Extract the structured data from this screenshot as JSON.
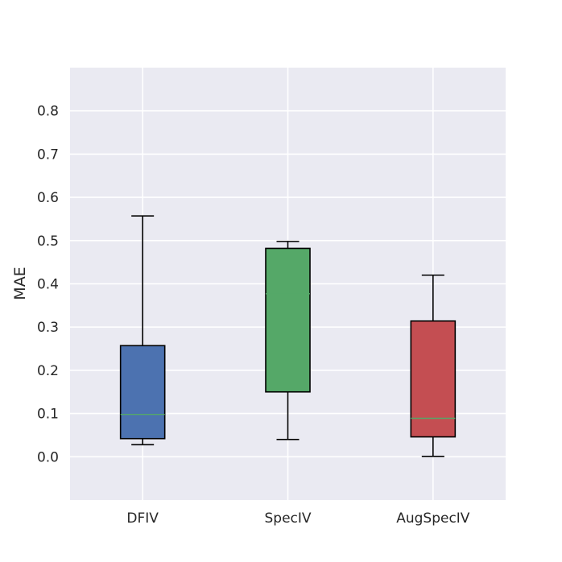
{
  "chart_data": {
    "type": "box",
    "title": "",
    "xlabel": "",
    "ylabel": "MAE",
    "ylim": [
      -0.1,
      0.9
    ],
    "yticks": [
      0.0,
      0.1,
      0.2,
      0.3,
      0.4,
      0.5,
      0.6,
      0.7,
      0.8
    ],
    "ytick_labels": [
      "0.0",
      "0.1",
      "0.2",
      "0.3",
      "0.4",
      "0.5",
      "0.6",
      "0.7",
      "0.8"
    ],
    "grid": true,
    "categories": [
      "DFIV",
      "SpecIV",
      "AugSpecIV"
    ],
    "boxes": [
      {
        "name": "DFIV",
        "whisker_low": 0.028,
        "q1": 0.042,
        "median": 0.098,
        "q3": 0.257,
        "whisker_high": 0.557,
        "color": "#4c72b0"
      },
      {
        "name": "SpecIV",
        "whisker_low": 0.04,
        "q1": 0.15,
        "median": 0.377,
        "q3": 0.482,
        "whisker_high": 0.498,
        "color": "#55a868"
      },
      {
        "name": "AugSpecIV",
        "whisker_low": 0.001,
        "q1": 0.046,
        "median": 0.089,
        "q3": 0.314,
        "whisker_high": 0.42,
        "color": "#c44e52"
      }
    ],
    "median_color": "#55a868",
    "background_color": "#eaeaf2",
    "grid_color": "#ffffff"
  }
}
